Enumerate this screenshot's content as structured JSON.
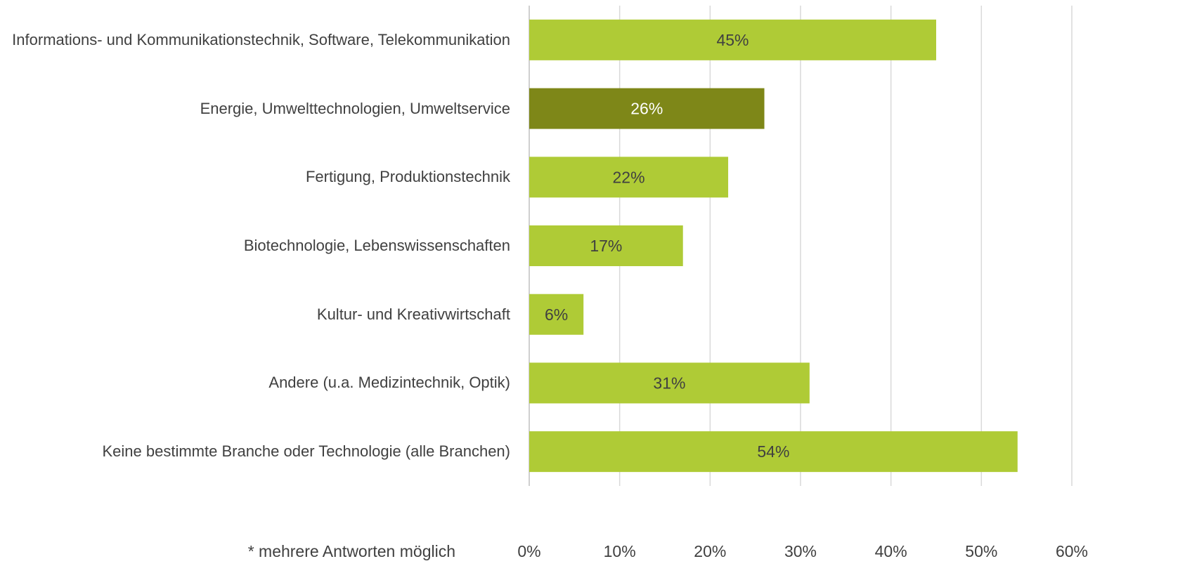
{
  "chart_data": {
    "type": "bar",
    "orientation": "horizontal",
    "categories": [
      "Informations- und Kommunikationstechnik, Software, Telekommunikation",
      "Energie, Umwelttechnologien, Umweltservice",
      "Fertigung, Produktionstechnik",
      "Biotechnologie, Lebenswissenschaften",
      "Kultur- und Kreativwirtschaft",
      "Andere (u.a. Medizintechnik, Optik)",
      "Keine bestimmte Branche oder Technologie (alle Branchen)"
    ],
    "values": [
      45,
      26,
      22,
      17,
      6,
      31,
      54
    ],
    "value_labels": [
      "45%",
      "26%",
      "22%",
      "17%",
      "6%",
      "31%",
      "54%"
    ],
    "colors": [
      "#afcb36",
      "#7e8718",
      "#afcb36",
      "#afcb36",
      "#afcb36",
      "#afcb36",
      "#afcb36"
    ],
    "xlim": [
      0,
      60
    ],
    "xticks": [
      {
        "value": 0,
        "label": "0%"
      },
      {
        "value": 10,
        "label": "10%"
      },
      {
        "value": 20,
        "label": "20%"
      },
      {
        "value": 30,
        "label": "30%"
      },
      {
        "value": 40,
        "label": "40%"
      },
      {
        "value": 50,
        "label": "50%"
      },
      {
        "value": 60,
        "label": "60%"
      }
    ],
    "grid": true,
    "annotation": "* mehrere Antworten möglich"
  }
}
